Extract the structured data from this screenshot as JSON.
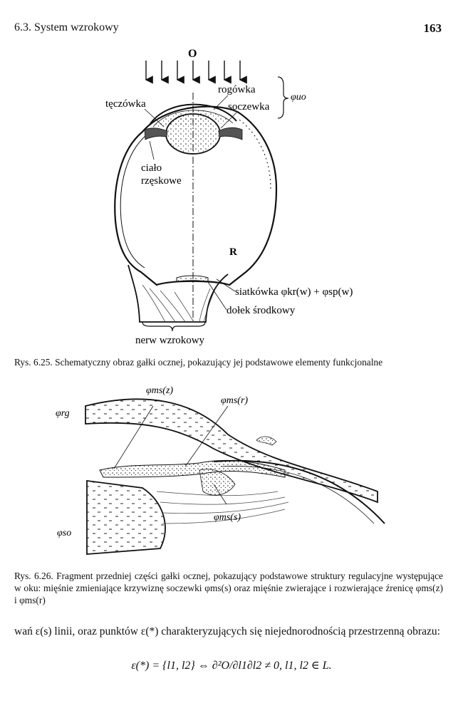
{
  "header": {
    "section": "6.3. System wzrokowy",
    "page_number": "163"
  },
  "figure1": {
    "label_O": "O",
    "teczowka": "tęczówka",
    "rogowka": "rogówka",
    "soczewka": "soczewka",
    "phi_uo": "φuo",
    "cialo": "ciało",
    "rzeskowe": "rzęskowe",
    "label_R": "R",
    "siatkowka": "siatkówka φkr(w) + φsp(w)",
    "dolek": "dołek środkowy",
    "nerw": "nerw wzrokowy",
    "caption": "Rys. 6.25. Schematyczny obraz gałki ocznej, pokazujący jej podstawowe elementy funkcjonalne"
  },
  "figure2": {
    "phi_ms_z": "φms(z)",
    "phi_ms_r": "φms(r)",
    "phi_ms_s": "φms(s)",
    "phi_rg": "φrg",
    "phi_so": "φso",
    "caption": "Rys. 6.26. Fragment przedniej części gałki ocznej, pokazujący podstawowe struktury regulacyjne występujące w oku: mięśnie zmieniające krzywiznę soczewki φms(s) oraz mięśnie zwierające i rozwierające źrenicę φms(z) i φms(r)"
  },
  "body": {
    "text": "wań ε(s) linii, oraz punktów ε(*) charakteryzujących się niejednorodnością przestrzenną obrazu:",
    "formula": "ε(*) = {l1, l2} ⇔ ∂²O/∂l1∂l2 ≠ 0,   l1, l2 ∈ L."
  }
}
